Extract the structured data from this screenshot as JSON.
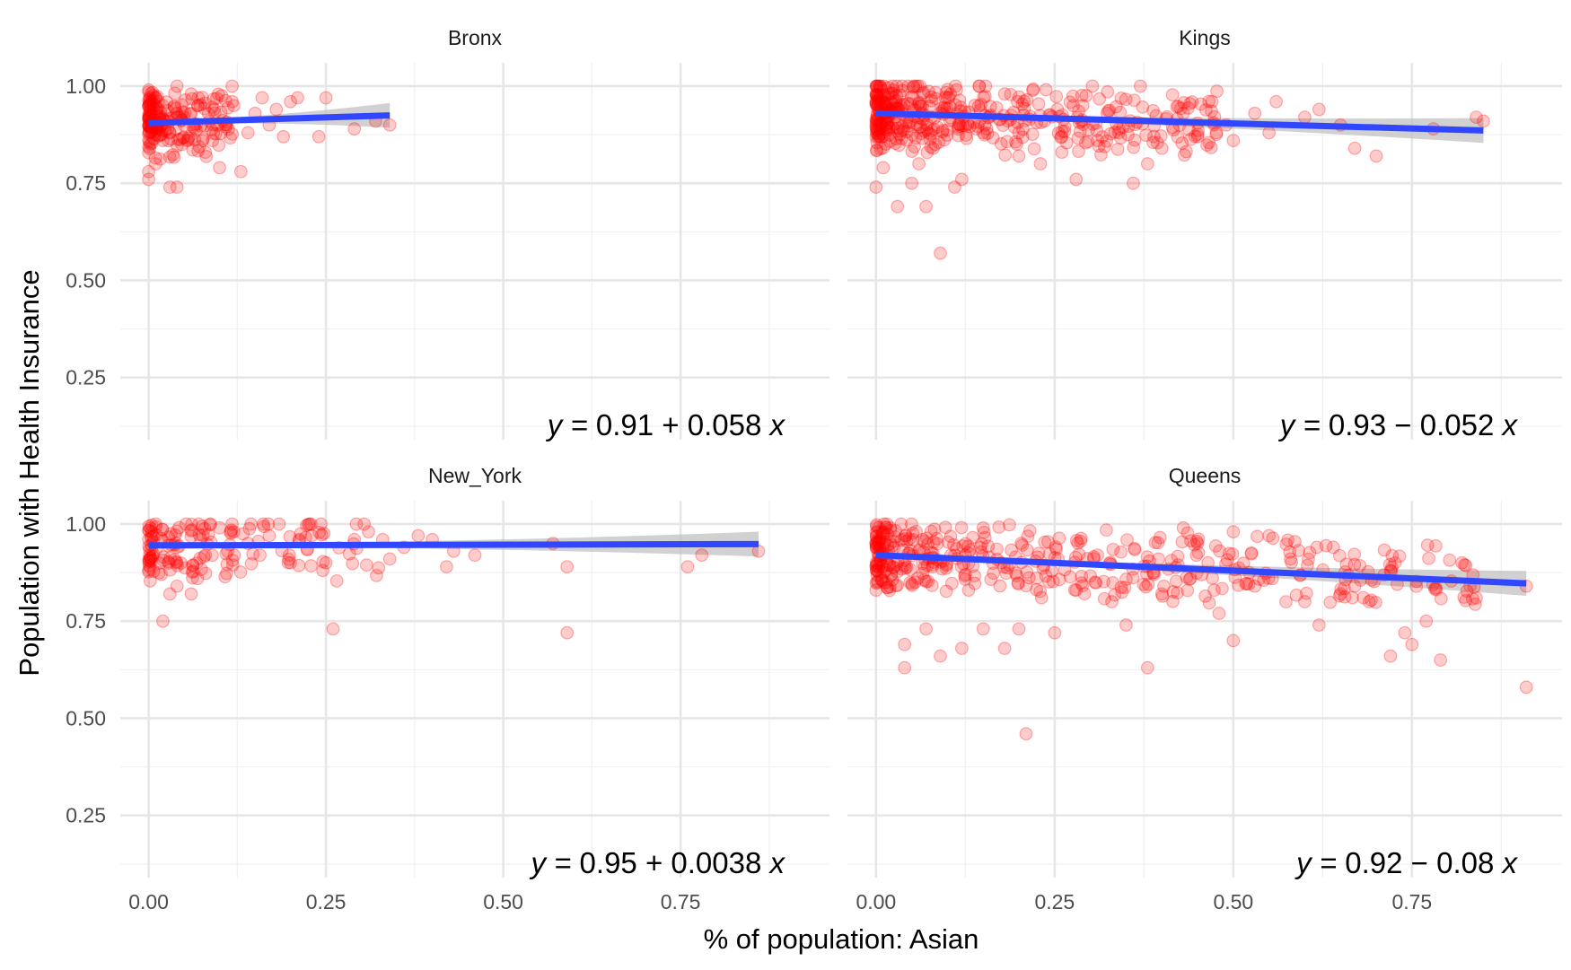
{
  "chart_data": {
    "type": "scatter",
    "xlabel": "% of population: Asian",
    "ylabel": "Population with Health Insurance",
    "xlim": [
      -0.04,
      0.96
    ],
    "ylim": [
      0.09,
      1.06
    ],
    "x_ticks": [
      "0.00",
      "0.25",
      "0.50",
      "0.75"
    ],
    "y_ticks": [
      "0.25",
      "0.50",
      "0.75",
      "1.00"
    ],
    "grid": true,
    "colors": {
      "points": "#ff0000",
      "fit_line": "#3047ff",
      "band": "#bdbdbd"
    },
    "panels": [
      {
        "name": "Bronx",
        "equation": {
          "prefix": "y = ",
          "body": "0.91 + 0.058 ",
          "suffix": "x"
        },
        "fit": {
          "intercept": 0.905,
          "slope": 0.058,
          "x_range": [
            0.0,
            0.34
          ]
        },
        "points": [
          [
            0.0,
            0.76
          ],
          [
            0.0,
            0.78
          ],
          [
            0.01,
            0.8
          ],
          [
            0.0,
            0.99
          ],
          [
            0.01,
            0.97
          ],
          [
            0.02,
            0.95
          ],
          [
            0.03,
            0.74
          ],
          [
            0.04,
            0.74
          ],
          [
            0.02,
            0.86
          ],
          [
            0.03,
            0.88
          ],
          [
            0.05,
            0.9
          ],
          [
            0.06,
            0.93
          ],
          [
            0.07,
            0.97
          ],
          [
            0.08,
            0.83
          ],
          [
            0.09,
            0.86
          ],
          [
            0.1,
            0.79
          ],
          [
            0.11,
            0.9
          ],
          [
            0.12,
            0.95
          ],
          [
            0.13,
            0.78
          ],
          [
            0.14,
            0.88
          ],
          [
            0.15,
            0.93
          ],
          [
            0.16,
            0.97
          ],
          [
            0.17,
            0.9
          ],
          [
            0.18,
            0.94
          ],
          [
            0.19,
            0.87
          ],
          [
            0.2,
            0.96
          ],
          [
            0.21,
            0.97
          ],
          [
            0.24,
            0.87
          ],
          [
            0.25,
            0.97
          ],
          [
            0.29,
            0.89
          ],
          [
            0.32,
            0.91
          ],
          [
            0.34,
            0.9
          ],
          [
            0.04,
            1.0
          ],
          [
            0.06,
            0.98
          ]
        ]
      },
      {
        "name": "Kings",
        "equation": {
          "prefix": "y = ",
          "body": "0.93 − 0.052 ",
          "suffix": "x"
        },
        "fit": {
          "intercept": 0.93,
          "slope": -0.052,
          "x_range": [
            0.0,
            0.85
          ]
        },
        "points": [
          [
            0.0,
            0.74
          ],
          [
            0.01,
            0.79
          ],
          [
            0.03,
            0.69
          ],
          [
            0.05,
            0.75
          ],
          [
            0.07,
            0.69
          ],
          [
            0.09,
            0.57
          ],
          [
            0.06,
            0.8
          ],
          [
            0.11,
            0.74
          ],
          [
            0.12,
            0.76
          ],
          [
            0.08,
            0.84
          ],
          [
            0.15,
            0.88
          ],
          [
            0.2,
            0.82
          ],
          [
            0.23,
            0.8
          ],
          [
            0.26,
            0.83
          ],
          [
            0.28,
            0.76
          ],
          [
            0.31,
            0.86
          ],
          [
            0.34,
            0.89
          ],
          [
            0.36,
            0.75
          ],
          [
            0.38,
            0.8
          ],
          [
            0.4,
            0.84
          ],
          [
            0.43,
            0.93
          ],
          [
            0.45,
            0.87
          ],
          [
            0.47,
            0.96
          ],
          [
            0.49,
            0.9
          ],
          [
            0.5,
            0.86
          ],
          [
            0.53,
            0.93
          ],
          [
            0.55,
            0.88
          ],
          [
            0.56,
            0.96
          ],
          [
            0.6,
            0.92
          ],
          [
            0.62,
            0.94
          ],
          [
            0.65,
            0.9
          ],
          [
            0.67,
            0.84
          ],
          [
            0.7,
            0.82
          ],
          [
            0.78,
            0.89
          ],
          [
            0.84,
            0.92
          ],
          [
            0.85,
            0.91
          ],
          [
            0.37,
            1.0
          ],
          [
            0.18,
            0.98
          ],
          [
            0.1,
            0.97
          ]
        ]
      },
      {
        "name": "New_York",
        "equation": {
          "prefix": "y = ",
          "body": "0.95 + 0.0038 ",
          "suffix": "x"
        },
        "fit": {
          "intercept": 0.945,
          "slope": 0.0038,
          "x_range": [
            0.0,
            0.86
          ]
        },
        "points": [
          [
            0.0,
            0.96
          ],
          [
            0.01,
            1.0
          ],
          [
            0.02,
            0.75
          ],
          [
            0.03,
            0.82
          ],
          [
            0.04,
            0.84
          ],
          [
            0.06,
            0.82
          ],
          [
            0.08,
            0.92
          ],
          [
            0.1,
            0.99
          ],
          [
            0.12,
            0.98
          ],
          [
            0.14,
            0.95
          ],
          [
            0.17,
            0.97
          ],
          [
            0.2,
            0.9
          ],
          [
            0.23,
            0.97
          ],
          [
            0.25,
            0.9
          ],
          [
            0.26,
            0.73
          ],
          [
            0.29,
            0.96
          ],
          [
            0.31,
            0.98
          ],
          [
            0.33,
            0.96
          ],
          [
            0.34,
            0.91
          ],
          [
            0.36,
            0.94
          ],
          [
            0.38,
            0.97
          ],
          [
            0.4,
            0.96
          ],
          [
            0.42,
            0.89
          ],
          [
            0.43,
            0.93
          ],
          [
            0.46,
            0.92
          ],
          [
            0.57,
            0.95
          ],
          [
            0.59,
            0.89
          ],
          [
            0.59,
            0.72
          ],
          [
            0.76,
            0.89
          ],
          [
            0.78,
            0.92
          ],
          [
            0.86,
            0.93
          ]
        ]
      },
      {
        "name": "Queens",
        "equation": {
          "prefix": "y = ",
          "body": "0.92 − 0.08 ",
          "suffix": "x"
        },
        "fit": {
          "intercept": 0.92,
          "slope": -0.08,
          "x_range": [
            0.0,
            0.91
          ]
        },
        "points": [
          [
            0.0,
            0.83
          ],
          [
            0.04,
            0.63
          ],
          [
            0.04,
            0.69
          ],
          [
            0.07,
            0.73
          ],
          [
            0.09,
            0.66
          ],
          [
            0.12,
            0.68
          ],
          [
            0.15,
            0.73
          ],
          [
            0.18,
            0.68
          ],
          [
            0.21,
            0.46
          ],
          [
            0.2,
            0.73
          ],
          [
            0.25,
            0.72
          ],
          [
            0.28,
            0.83
          ],
          [
            0.31,
            0.92
          ],
          [
            0.33,
            0.8
          ],
          [
            0.35,
            0.74
          ],
          [
            0.38,
            0.63
          ],
          [
            0.4,
            0.82
          ],
          [
            0.44,
            0.86
          ],
          [
            0.45,
            0.95
          ],
          [
            0.48,
            0.77
          ],
          [
            0.5,
            0.98
          ],
          [
            0.5,
            0.7
          ],
          [
            0.53,
            0.84
          ],
          [
            0.55,
            0.97
          ],
          [
            0.58,
            0.91
          ],
          [
            0.6,
            0.8
          ],
          [
            0.62,
            0.74
          ],
          [
            0.64,
            0.94
          ],
          [
            0.67,
            0.84
          ],
          [
            0.69,
            0.8
          ],
          [
            0.72,
            0.88
          ],
          [
            0.72,
            0.66
          ],
          [
            0.74,
            0.72
          ],
          [
            0.75,
            0.69
          ],
          [
            0.77,
            0.75
          ],
          [
            0.79,
            0.65
          ],
          [
            0.82,
            0.9
          ],
          [
            0.84,
            0.81
          ],
          [
            0.91,
            0.84
          ],
          [
            0.91,
            0.58
          ],
          [
            0.43,
            0.99
          ],
          [
            0.15,
            0.99
          ]
        ]
      }
    ]
  }
}
